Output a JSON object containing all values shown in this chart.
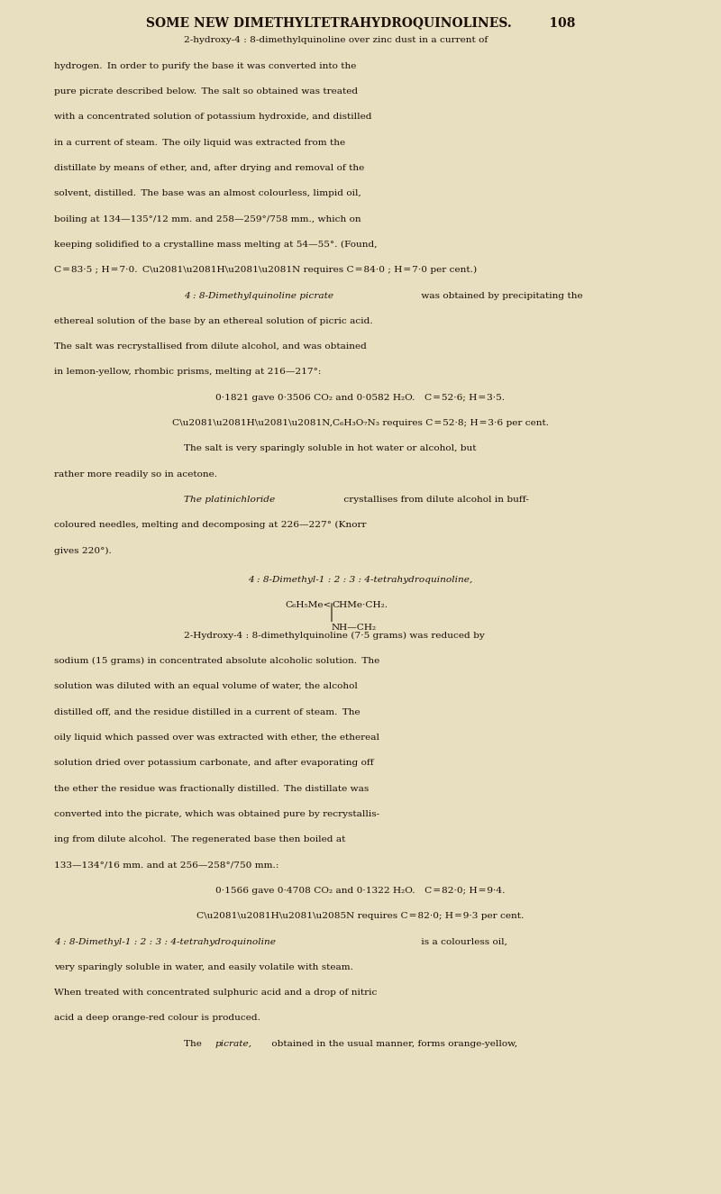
{
  "bg_color": "#e8dfc0",
  "text_color": "#1a1008",
  "page_width": 8.0,
  "page_height": 13.25,
  "header": "SOME NEW DIMETHYLTETRAHYDROQUINOLINES.   108",
  "body_lines": [
    {
      "text": "2-hydroxy-4 : 8-dimethylquinoline over zinc dust in a current of",
      "style": "normal",
      "indent": 0.18,
      "size": 10.5
    },
    {
      "text": "hydrogen. In order to purify the base it was converted into the",
      "style": "normal",
      "indent": 0.0,
      "size": 10.5
    },
    {
      "text": "pure picrate described below. The salt so obtained was treated",
      "style": "normal",
      "indent": 0.0,
      "size": 10.5
    },
    {
      "text": "with a concentrated solution of potassium hydroxide, and distilled",
      "style": "normal",
      "indent": 0.0,
      "size": 10.5
    },
    {
      "text": "in a current of steam. The oily liquid was extracted from the",
      "style": "normal",
      "indent": 0.0,
      "size": 10.5
    },
    {
      "text": "distillate by means of ether, and, after drying and removal of the",
      "style": "normal",
      "indent": 0.0,
      "size": 10.5
    },
    {
      "text": "solvent, distilled. The base was an almost colourless, limpid oil,",
      "style": "normal",
      "indent": 0.0,
      "size": 10.5
    },
    {
      "text": "boiling at 134—135°/12 mm. and 258—259°/758 mm., which on",
      "style": "normal",
      "indent": 0.0,
      "size": 10.5
    },
    {
      "text": "keeping solidified to a crystalline mass melting at 54—55°. (Found,",
      "style": "normal",
      "indent": 0.0,
      "size": 10.5
    },
    {
      "text": "C = 83·5 ; H = 7·0. C\\u2081\\u2081H\\u2081\\u2081N requires C = 84·0 ; H = 7·0 per cent.)",
      "style": "normal",
      "indent": 0.0,
      "size": 10.5
    },
    {
      "text": "4 : 8-Dimethylquinoline picrate was obtained by precipitating the",
      "style": "italic_start",
      "indent": 0.18,
      "size": 10.5
    },
    {
      "text": "ethereal solution of the base by an ethereal solution of picric acid.",
      "style": "normal",
      "indent": 0.0,
      "size": 10.5
    },
    {
      "text": "The salt was recrystallised from dilute alcohol, and was obtained",
      "style": "normal",
      "indent": 0.0,
      "size": 10.5
    },
    {
      "text": "in lemon-yellow, rhombic prisms, melting at 216—217°:",
      "style": "normal",
      "indent": 0.0,
      "size": 10.5
    },
    {
      "text": "0·1821 gave 0·3506 CO₂ and 0·0582 H₂O. C = 52·6; H = 3·5.",
      "style": "center",
      "indent": 0.0,
      "size": 10.5
    },
    {
      "text": "C\\u2081\\u2081H\\u2081\\u2081N,C₆H₃O₇N₃ requires C = 52·8; H = 3·6 per cent.",
      "style": "center",
      "indent": 0.0,
      "size": 10.5
    },
    {
      "text": "The salt is very sparingly soluble in hot water or alcohol, but",
      "style": "normal",
      "indent": 0.18,
      "size": 10.5
    },
    {
      "text": "rather more readily so in acetone.",
      "style": "normal",
      "indent": 0.0,
      "size": 10.5
    },
    {
      "text": "The platinichloride crystallises from dilute alcohol in buff-",
      "style": "italic_platin",
      "indent": 0.18,
      "size": 10.5
    },
    {
      "text": "coloured needles, melting and decomposing at 226—227° (Knorr",
      "style": "normal",
      "indent": 0.0,
      "size": 10.5
    },
    {
      "text": "gives 220°).",
      "style": "normal",
      "indent": 0.0,
      "size": 10.5
    }
  ],
  "section_title": "4 : 8-Dimethyl-1 : 2 : 3 : 4-tetrahydroquinoline,",
  "chem_formula_line1": "C₆H₅Me<CHMe·CH₂.",
  "chem_formula_line2": "NH—CH₂",
  "body2_lines": [
    {
      "text": "2-Hydroxy-4 : 8-dimethylquinoline (7·5 grams) was reduced by",
      "style": "normal",
      "indent": 0.18,
      "size": 10.5
    },
    {
      "text": "sodium (15 grams) in concentrated absolute alcoholic solution. The",
      "style": "normal",
      "indent": 0.0,
      "size": 10.5
    },
    {
      "text": "solution was diluted with an equal volume of water, the alcohol",
      "style": "normal",
      "indent": 0.0,
      "size": 10.5
    },
    {
      "text": "distilled off, and the residue distilled in a current of steam. The",
      "style": "normal",
      "indent": 0.0,
      "size": 10.5
    },
    {
      "text": "oily liquid which passed over was extracted with ether, the ethereal",
      "style": "normal",
      "indent": 0.0,
      "size": 10.5
    },
    {
      "text": "solution dried over potassium carbonate, and after evaporating off",
      "style": "normal",
      "indent": 0.0,
      "size": 10.5
    },
    {
      "text": "the ether the residue was fractionally distilled. The distillate was",
      "style": "normal",
      "indent": 0.0,
      "size": 10.5
    },
    {
      "text": "converted into the picrate, which was obtained pure by recrystallis-",
      "style": "normal",
      "indent": 0.0,
      "size": 10.5
    },
    {
      "text": "ing from dilute alcohol. The regenerated base then boiled at",
      "style": "normal",
      "indent": 0.0,
      "size": 10.5
    },
    {
      "text": "133—134°/16 mm. and at 256—258°/750 mm.:",
      "style": "normal",
      "indent": 0.0,
      "size": 10.5
    },
    {
      "text": "0·1566 gave 0·4708 CO₂ and 0·1322 H₂O. C = 82·0; H = 9·4.",
      "style": "center",
      "indent": 0.0,
      "size": 10.5
    },
    {
      "text": "C\\u2081\\u2081H\\u2081\\u2085N requires C = 82·0; H = 9·3 per cent.",
      "style": "center",
      "indent": 0.0,
      "size": 10.5
    },
    {
      "text": "4 : 8-Dimethyl-1 : 2 : 3 : 4-tetrahydroquinoline is a colourless oil,",
      "style": "italic_start2",
      "indent": 0.0,
      "size": 10.5
    },
    {
      "text": "very sparingly soluble in water, and easily volatile with steam.",
      "style": "normal",
      "indent": 0.0,
      "size": 10.5
    },
    {
      "text": "When treated with concentrated sulphuric acid and a drop of nitric",
      "style": "normal",
      "indent": 0.0,
      "size": 10.5
    },
    {
      "text": "acid a deep orange-red colour is produced.",
      "style": "normal",
      "indent": 0.0,
      "size": 10.5
    },
    {
      "text": "The picrate, obtained in the usual manner, forms orange-yellow,",
      "style": "italic_picrate",
      "indent": 0.18,
      "size": 10.5
    }
  ]
}
